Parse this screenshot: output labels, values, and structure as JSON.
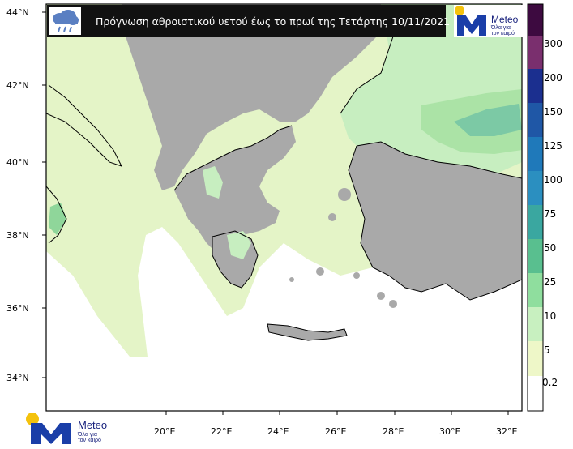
{
  "title": "Πρόγνωση αθροιστικού υετού έως το πρωί της Τετάρτης 10/11/2021",
  "brand": {
    "name": "Meteo",
    "slogan_line1": "Όλα για",
    "slogan_line2": "τον καιρό"
  },
  "icons": {
    "title": "rain-cloud-icon",
    "logo": "meteo-logo-icon"
  },
  "map": {
    "lat_labels": [
      "44°N",
      "42°N",
      "40°N",
      "38°N",
      "36°N",
      "34°N"
    ],
    "lon_labels": [
      "20°E",
      "22°E",
      "24°E",
      "26°E",
      "28°E",
      "30°E",
      "32°E"
    ]
  },
  "legend": {
    "labels": [
      "300",
      "200",
      "150",
      "125",
      "100",
      "75",
      "50",
      "25",
      "10",
      "5",
      "0.2"
    ],
    "colors": [
      "#3d0a40",
      "#7a2f6e",
      "#1b2f8f",
      "#1f57a6",
      "#1f79ba",
      "#2b8fc0",
      "#3aa7a0",
      "#59bf8f",
      "#8fde9e",
      "#c8f0c0",
      "#eef7c8",
      "#ffffff"
    ]
  },
  "colors": {
    "land_no_precip": "#a8a8a8",
    "sea_light": "#e3f3c6",
    "sea_lighter": "#eef8d4",
    "green": "#b8ecb3",
    "banner": "#111111",
    "brand_blue": "#1a3ea8",
    "brand_sun": "#f4c20d"
  }
}
